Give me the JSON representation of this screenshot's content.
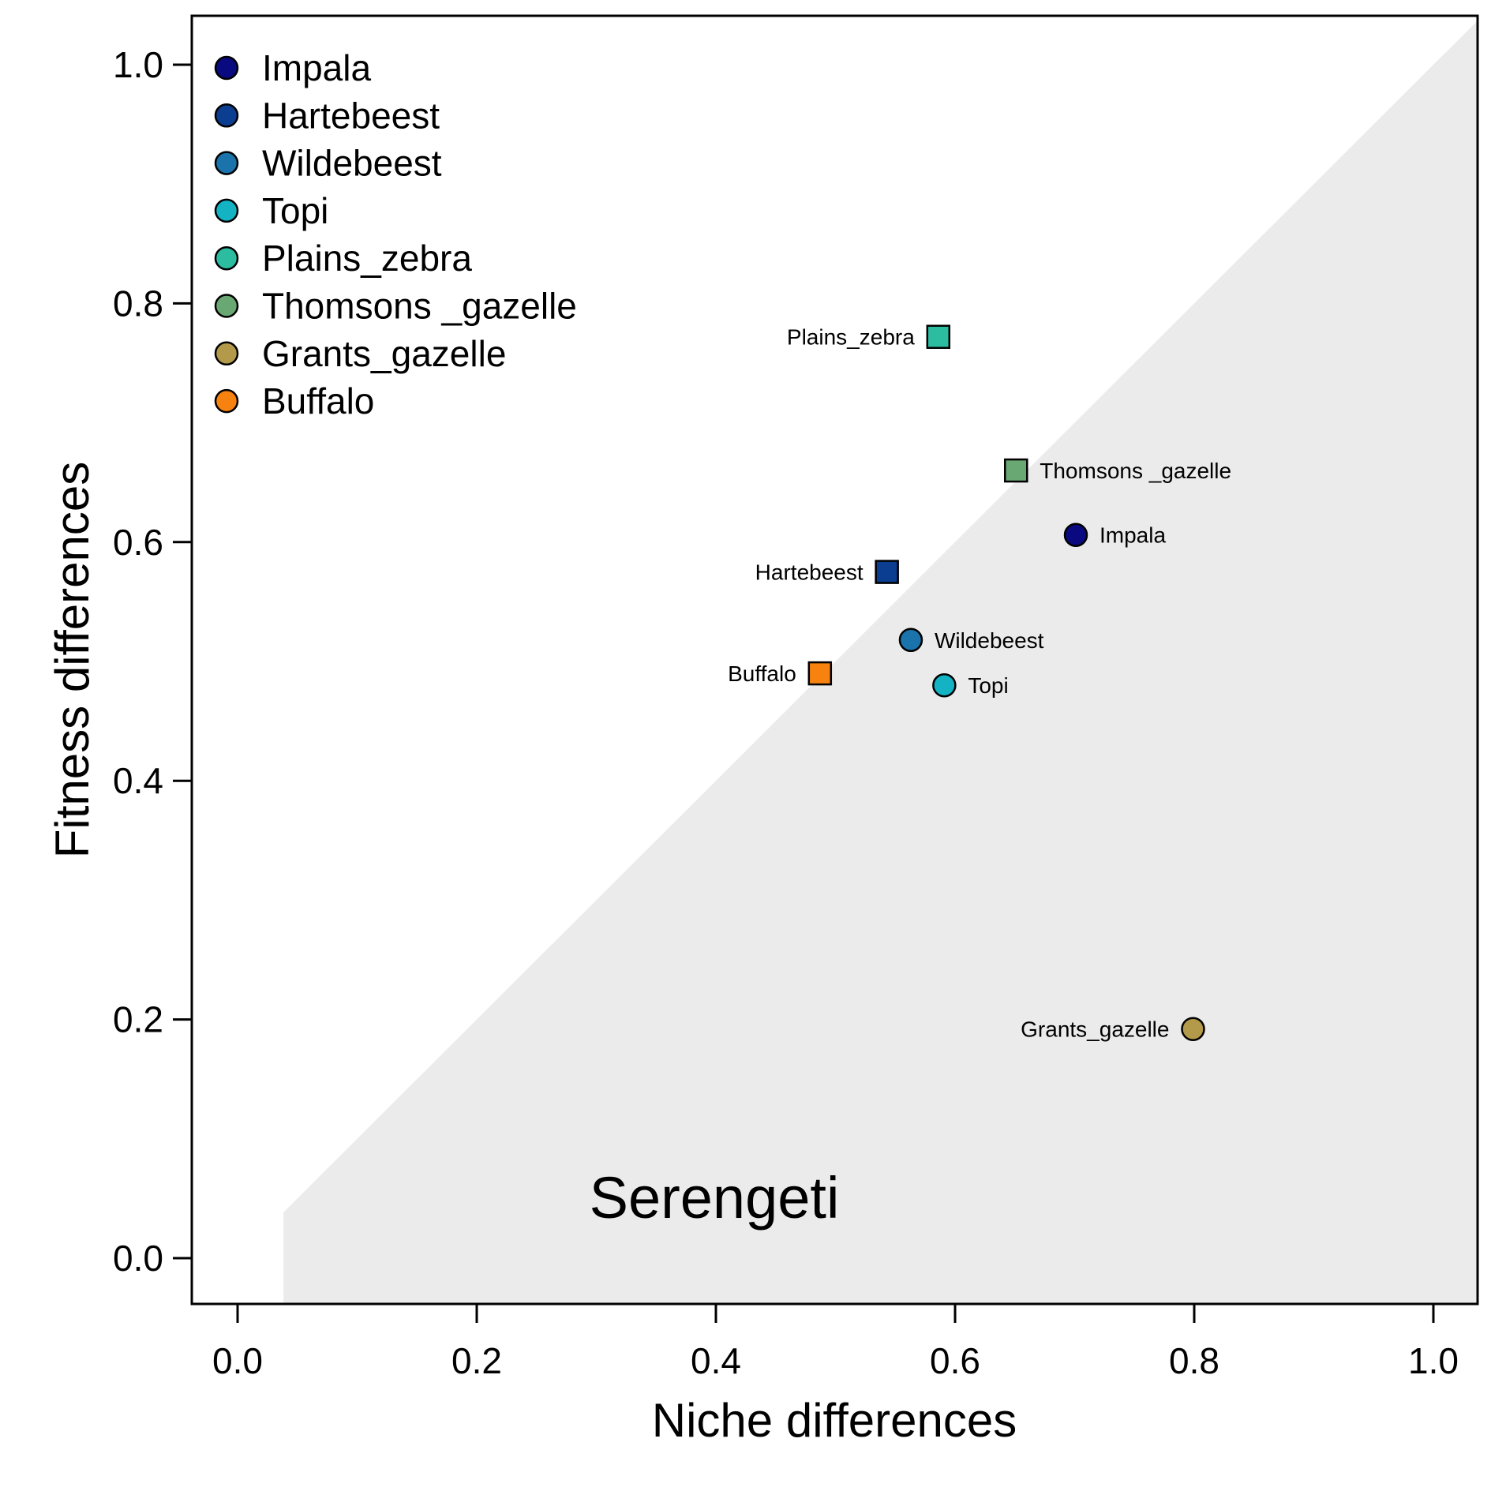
{
  "chart_data": {
    "type": "scatter",
    "xlabel": "Niche differences",
    "ylabel": "Fitness differences",
    "xlim": [
      0,
      1
    ],
    "ylim": [
      0,
      1
    ],
    "xticks": [
      "0.0",
      "0.2",
      "0.4",
      "0.6",
      "0.8",
      "1.0"
    ],
    "yticks": [
      "0.0",
      "0.2",
      "0.4",
      "0.6",
      "0.8",
      "1.0"
    ],
    "grid": false,
    "legend_position": "top-left",
    "shaded_region": "below the 1:1 diagonal",
    "annotation": "Serengeti",
    "series": [
      {
        "name": "Impala",
        "color": "#0a0a80",
        "x": 0.701,
        "y": 0.606,
        "marker": "circle"
      },
      {
        "name": "Hartebeest",
        "color": "#0b3d91",
        "x": 0.543,
        "y": 0.575,
        "marker": "square"
      },
      {
        "name": "Wildebeest",
        "color": "#1a74ab",
        "x": 0.563,
        "y": 0.518,
        "marker": "circle"
      },
      {
        "name": "Topi",
        "color": "#13b3c4",
        "x": 0.591,
        "y": 0.48,
        "marker": "circle"
      },
      {
        "name": "Plains_zebra",
        "color": "#2cbca0",
        "x": 0.586,
        "y": 0.772,
        "marker": "square"
      },
      {
        "name": "Thomsons _gazelle",
        "color": "#6aa873",
        "x": 0.651,
        "y": 0.66,
        "marker": "square"
      },
      {
        "name": "Grants_gazelle",
        "color": "#b39a4b",
        "x": 0.799,
        "y": 0.192,
        "marker": "circle"
      },
      {
        "name": "Buffalo",
        "color": "#f7820f",
        "x": 0.487,
        "y": 0.49,
        "marker": "square"
      }
    ]
  }
}
